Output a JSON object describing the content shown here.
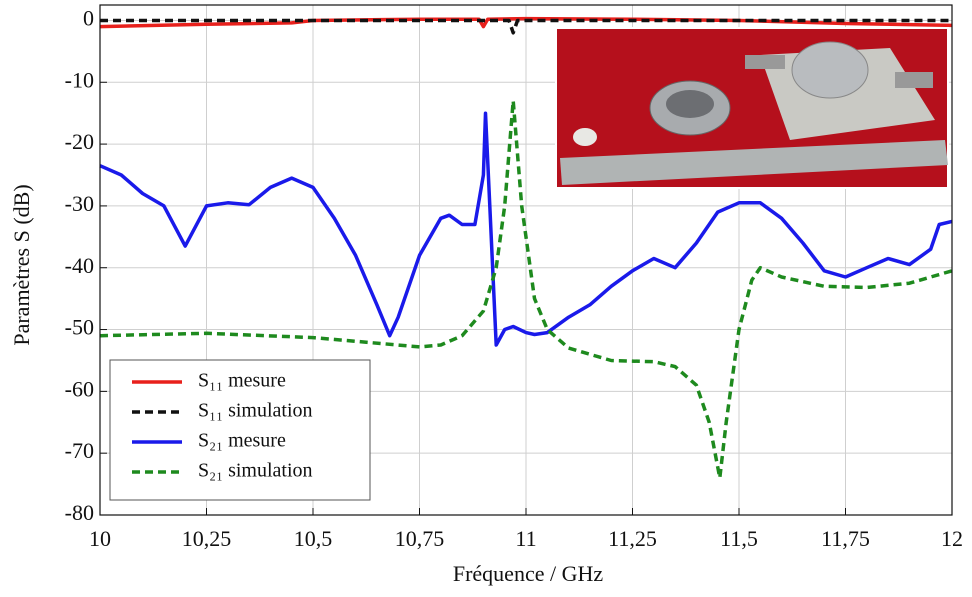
{
  "chart_data": {
    "type": "line",
    "xlabel": "Fréquence / GHz",
    "ylabel": "Paramètres S (dB)",
    "xlim": [
      10,
      12
    ],
    "ylim": [
      -80,
      2.5
    ],
    "xticks": [
      10,
      {
        "value": 10.25,
        "label": "10,25"
      },
      {
        "value": 10.5,
        "label": "10,5"
      },
      {
        "value": 10.75,
        "label": "10,75"
      },
      11,
      {
        "value": 11.25,
        "label": "11,25"
      },
      {
        "value": 11.5,
        "label": "11,5"
      },
      {
        "value": 11.75,
        "label": "11,75"
      },
      12
    ],
    "yticks": [
      -80,
      -70,
      -60,
      -50,
      -40,
      -30,
      -20,
      -10,
      0
    ],
    "grid": true,
    "legend": "lower left",
    "series": [
      {
        "name": "S₁₁ mesure",
        "color": "#e8201c",
        "dashed": false,
        "x": [
          10,
          10.25,
          10.45,
          10.5,
          10.75,
          10.89,
          10.9,
          10.91,
          11,
          11.25,
          11.5,
          11.75,
          12
        ],
        "values": [
          -1,
          -0.6,
          -0.4,
          0,
          0.2,
          0.2,
          -1,
          0.2,
          0.3,
          0.2,
          0,
          -0.5,
          -0.8
        ]
      },
      {
        "name": "S₁₁ simulation",
        "color": "#111111",
        "dashed": true,
        "x": [
          10,
          10.5,
          10.96,
          10.97,
          10.98,
          11.5,
          12
        ],
        "values": [
          0,
          0,
          0,
          -2,
          0,
          0,
          0
        ]
      },
      {
        "name": "S₂₁ mesure",
        "color": "#1a1aea",
        "dashed": false,
        "x": [
          10,
          10.05,
          10.1,
          10.15,
          10.2,
          10.25,
          10.3,
          10.35,
          10.4,
          10.45,
          10.5,
          10.55,
          10.6,
          10.65,
          10.68,
          10.7,
          10.75,
          10.8,
          10.82,
          10.85,
          10.88,
          10.9,
          10.905,
          10.915,
          10.93,
          10.95,
          10.97,
          11,
          11.02,
          11.05,
          11.1,
          11.15,
          11.2,
          11.25,
          11.3,
          11.35,
          11.4,
          11.45,
          11.5,
          11.55,
          11.6,
          11.65,
          11.7,
          11.75,
          11.8,
          11.85,
          11.9,
          11.95,
          11.97,
          12
        ],
        "values": [
          -23.5,
          -25,
          -28,
          -30,
          -36.5,
          -30,
          -29.5,
          -29.8,
          -27,
          -25.5,
          -27,
          -32,
          -38,
          -46,
          -51,
          -48,
          -38,
          -32,
          -31.5,
          -33,
          -33,
          -25,
          -15,
          -30,
          -52.5,
          -50,
          -49.5,
          -50.5,
          -50.8,
          -50.5,
          -48,
          -46,
          -43,
          -40.5,
          -38.5,
          -40,
          -36,
          -31,
          -29.5,
          -29.5,
          -32,
          -36,
          -40.5,
          -41.5,
          -40,
          -38.5,
          -39.5,
          -37,
          -33,
          -32.5
        ]
      },
      {
        "name": "S₂₁ simulation",
        "color": "#1e8a1e",
        "dashed": true,
        "x": [
          10,
          10.25,
          10.5,
          10.75,
          10.8,
          10.85,
          10.9,
          10.93,
          10.95,
          10.97,
          10.99,
          11.02,
          11.05,
          11.1,
          11.2,
          11.3,
          11.35,
          11.4,
          11.43,
          11.455,
          11.47,
          11.5,
          11.53,
          11.55,
          11.6,
          11.7,
          11.8,
          11.9,
          12
        ],
        "values": [
          -51,
          -50.6,
          -51.3,
          -52.8,
          -52.5,
          -51,
          -47,
          -40,
          -30,
          -13,
          -30,
          -45,
          -50,
          -53,
          -55,
          -55.2,
          -56,
          -59,
          -65,
          -74,
          -65,
          -50,
          -42,
          -40,
          -41.5,
          -43,
          -43.2,
          -42.5,
          -40.5
        ]
      }
    ]
  }
}
